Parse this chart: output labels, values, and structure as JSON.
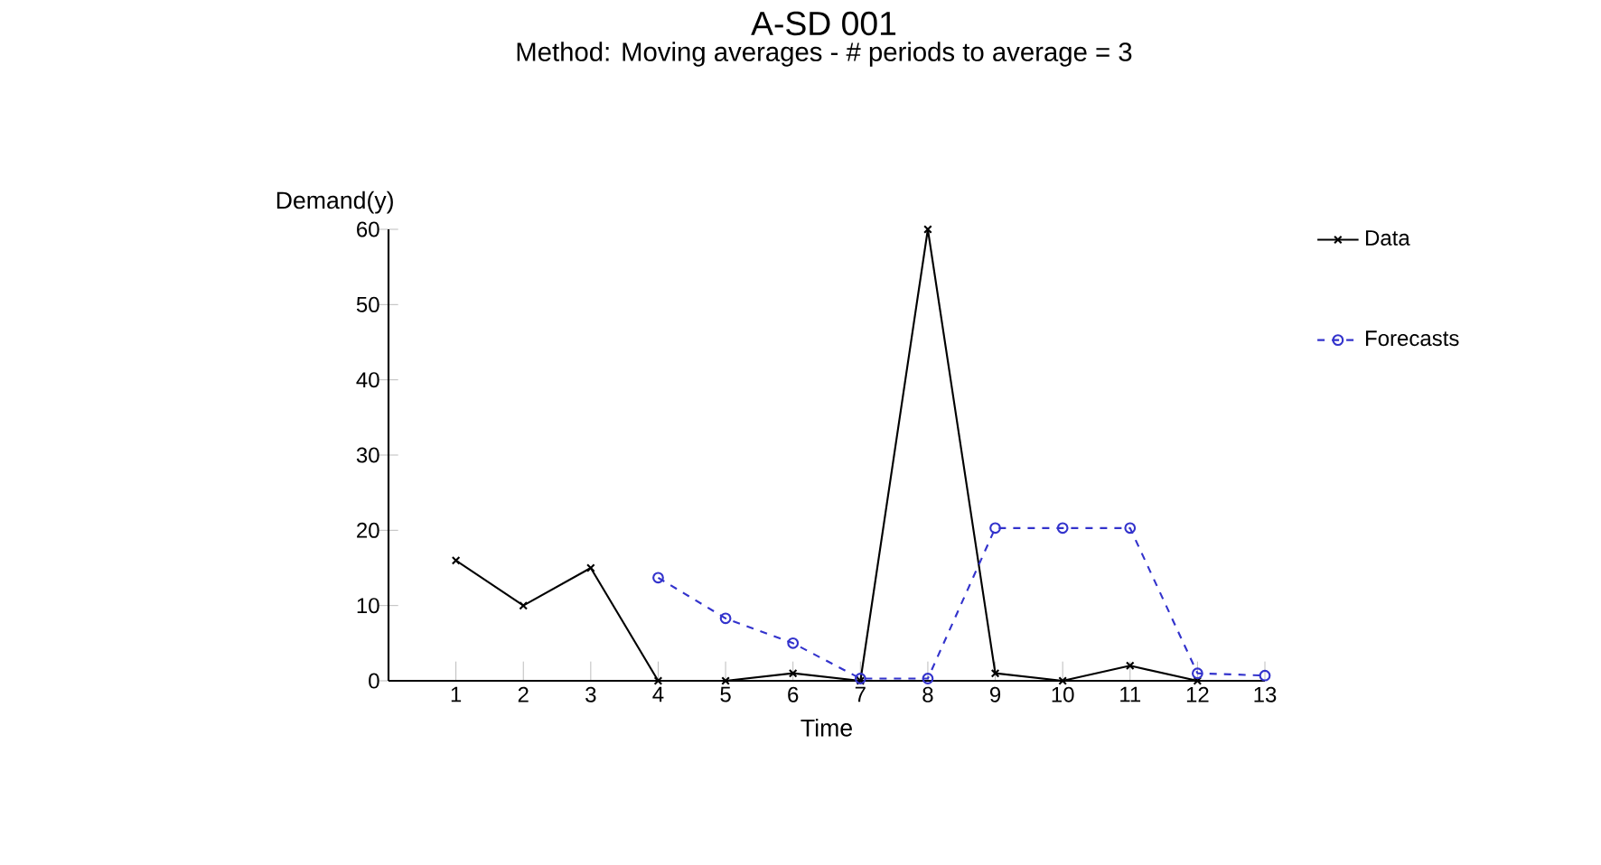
{
  "chart_data": {
    "type": "line",
    "title": "A-SD 001",
    "subtitle": "Method: Moving averages - # periods to average = 3",
    "xlabel": "Time",
    "ylabel": "Demand(y)",
    "xlim": [
      0,
      13
    ],
    "xticks": [
      1,
      2,
      3,
      4,
      5,
      6,
      7,
      8,
      9,
      10,
      11,
      12,
      13
    ],
    "ylim": [
      0,
      60
    ],
    "yticks": [
      0,
      10,
      20,
      30,
      40,
      50,
      60
    ],
    "legend": "top right",
    "series": [
      {
        "name": "Data",
        "color": "#000000",
        "marker": "cross",
        "line_style": "solid",
        "x": [
          1,
          2,
          3,
          4,
          5,
          6,
          7,
          8,
          9,
          10,
          11,
          12
        ],
        "values": [
          16,
          10,
          15,
          0,
          0,
          1,
          0,
          60,
          1,
          0,
          2,
          0
        ]
      },
      {
        "name": "Forecasts",
        "color": "#3333cc",
        "marker": "circle",
        "line_style": "dashed",
        "x": [
          4,
          5,
          6,
          7,
          8,
          9,
          10,
          11,
          12,
          13
        ],
        "values": [
          13.7,
          8.3,
          5,
          0.3,
          0.3,
          20.3,
          20.3,
          20.3,
          1,
          0.7
        ]
      }
    ]
  }
}
